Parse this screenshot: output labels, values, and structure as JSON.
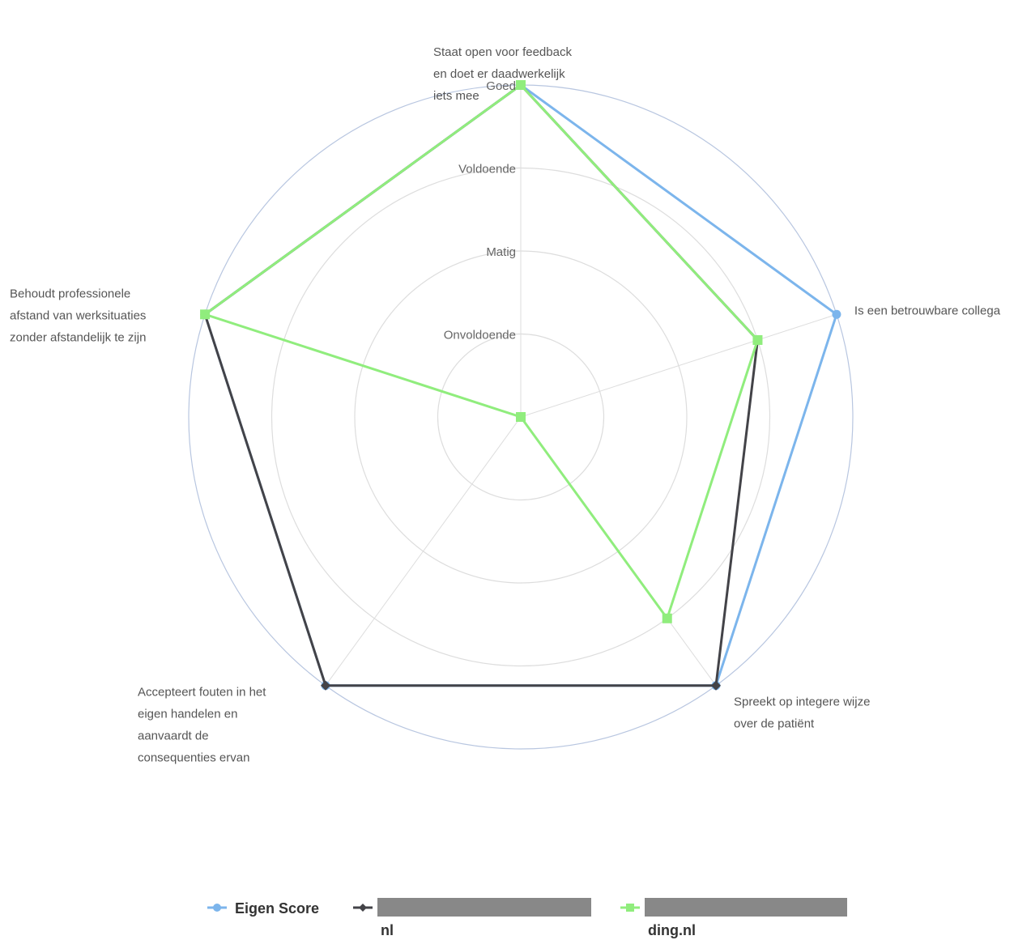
{
  "chart_data": {
    "type": "radar",
    "title": "",
    "levels": [
      "Onvoldoende",
      "Matig",
      "Voldoende",
      "Goed"
    ],
    "axes": [
      {
        "label_lines": [
          "Staat open voor feedback",
          "en doet er daadwerkelijk",
          "iets mee"
        ]
      },
      {
        "label_lines": [
          "Is een betrouwbare collega"
        ]
      },
      {
        "label_lines": [
          "Spreekt op integere wijze",
          "over de patiënt"
        ]
      },
      {
        "label_lines": [
          "Accepteert fouten in het",
          "eigen handelen en",
          "aanvaardt de",
          "consequenties ervan"
        ]
      },
      {
        "label_lines": [
          "Behoudt professionele",
          "afstand van werksituaties",
          "zonder afstandelijk te zijn"
        ]
      }
    ],
    "rlim": [
      0,
      4
    ],
    "series": [
      {
        "name": "Eigen Score",
        "color": "#7cb5ec",
        "marker": "circle",
        "values": [
          4,
          4,
          4,
          4,
          4
        ]
      },
      {
        "name": "nl",
        "color": "#434348",
        "marker": "diamond",
        "values": [
          4,
          3,
          4,
          4,
          4
        ]
      },
      {
        "name": "ding.nl",
        "color": "#90ed7d",
        "marker": "square",
        "values": [
          4,
          3,
          3,
          0,
          4
        ]
      }
    ],
    "legend": {
      "position": "bottom-center"
    }
  }
}
